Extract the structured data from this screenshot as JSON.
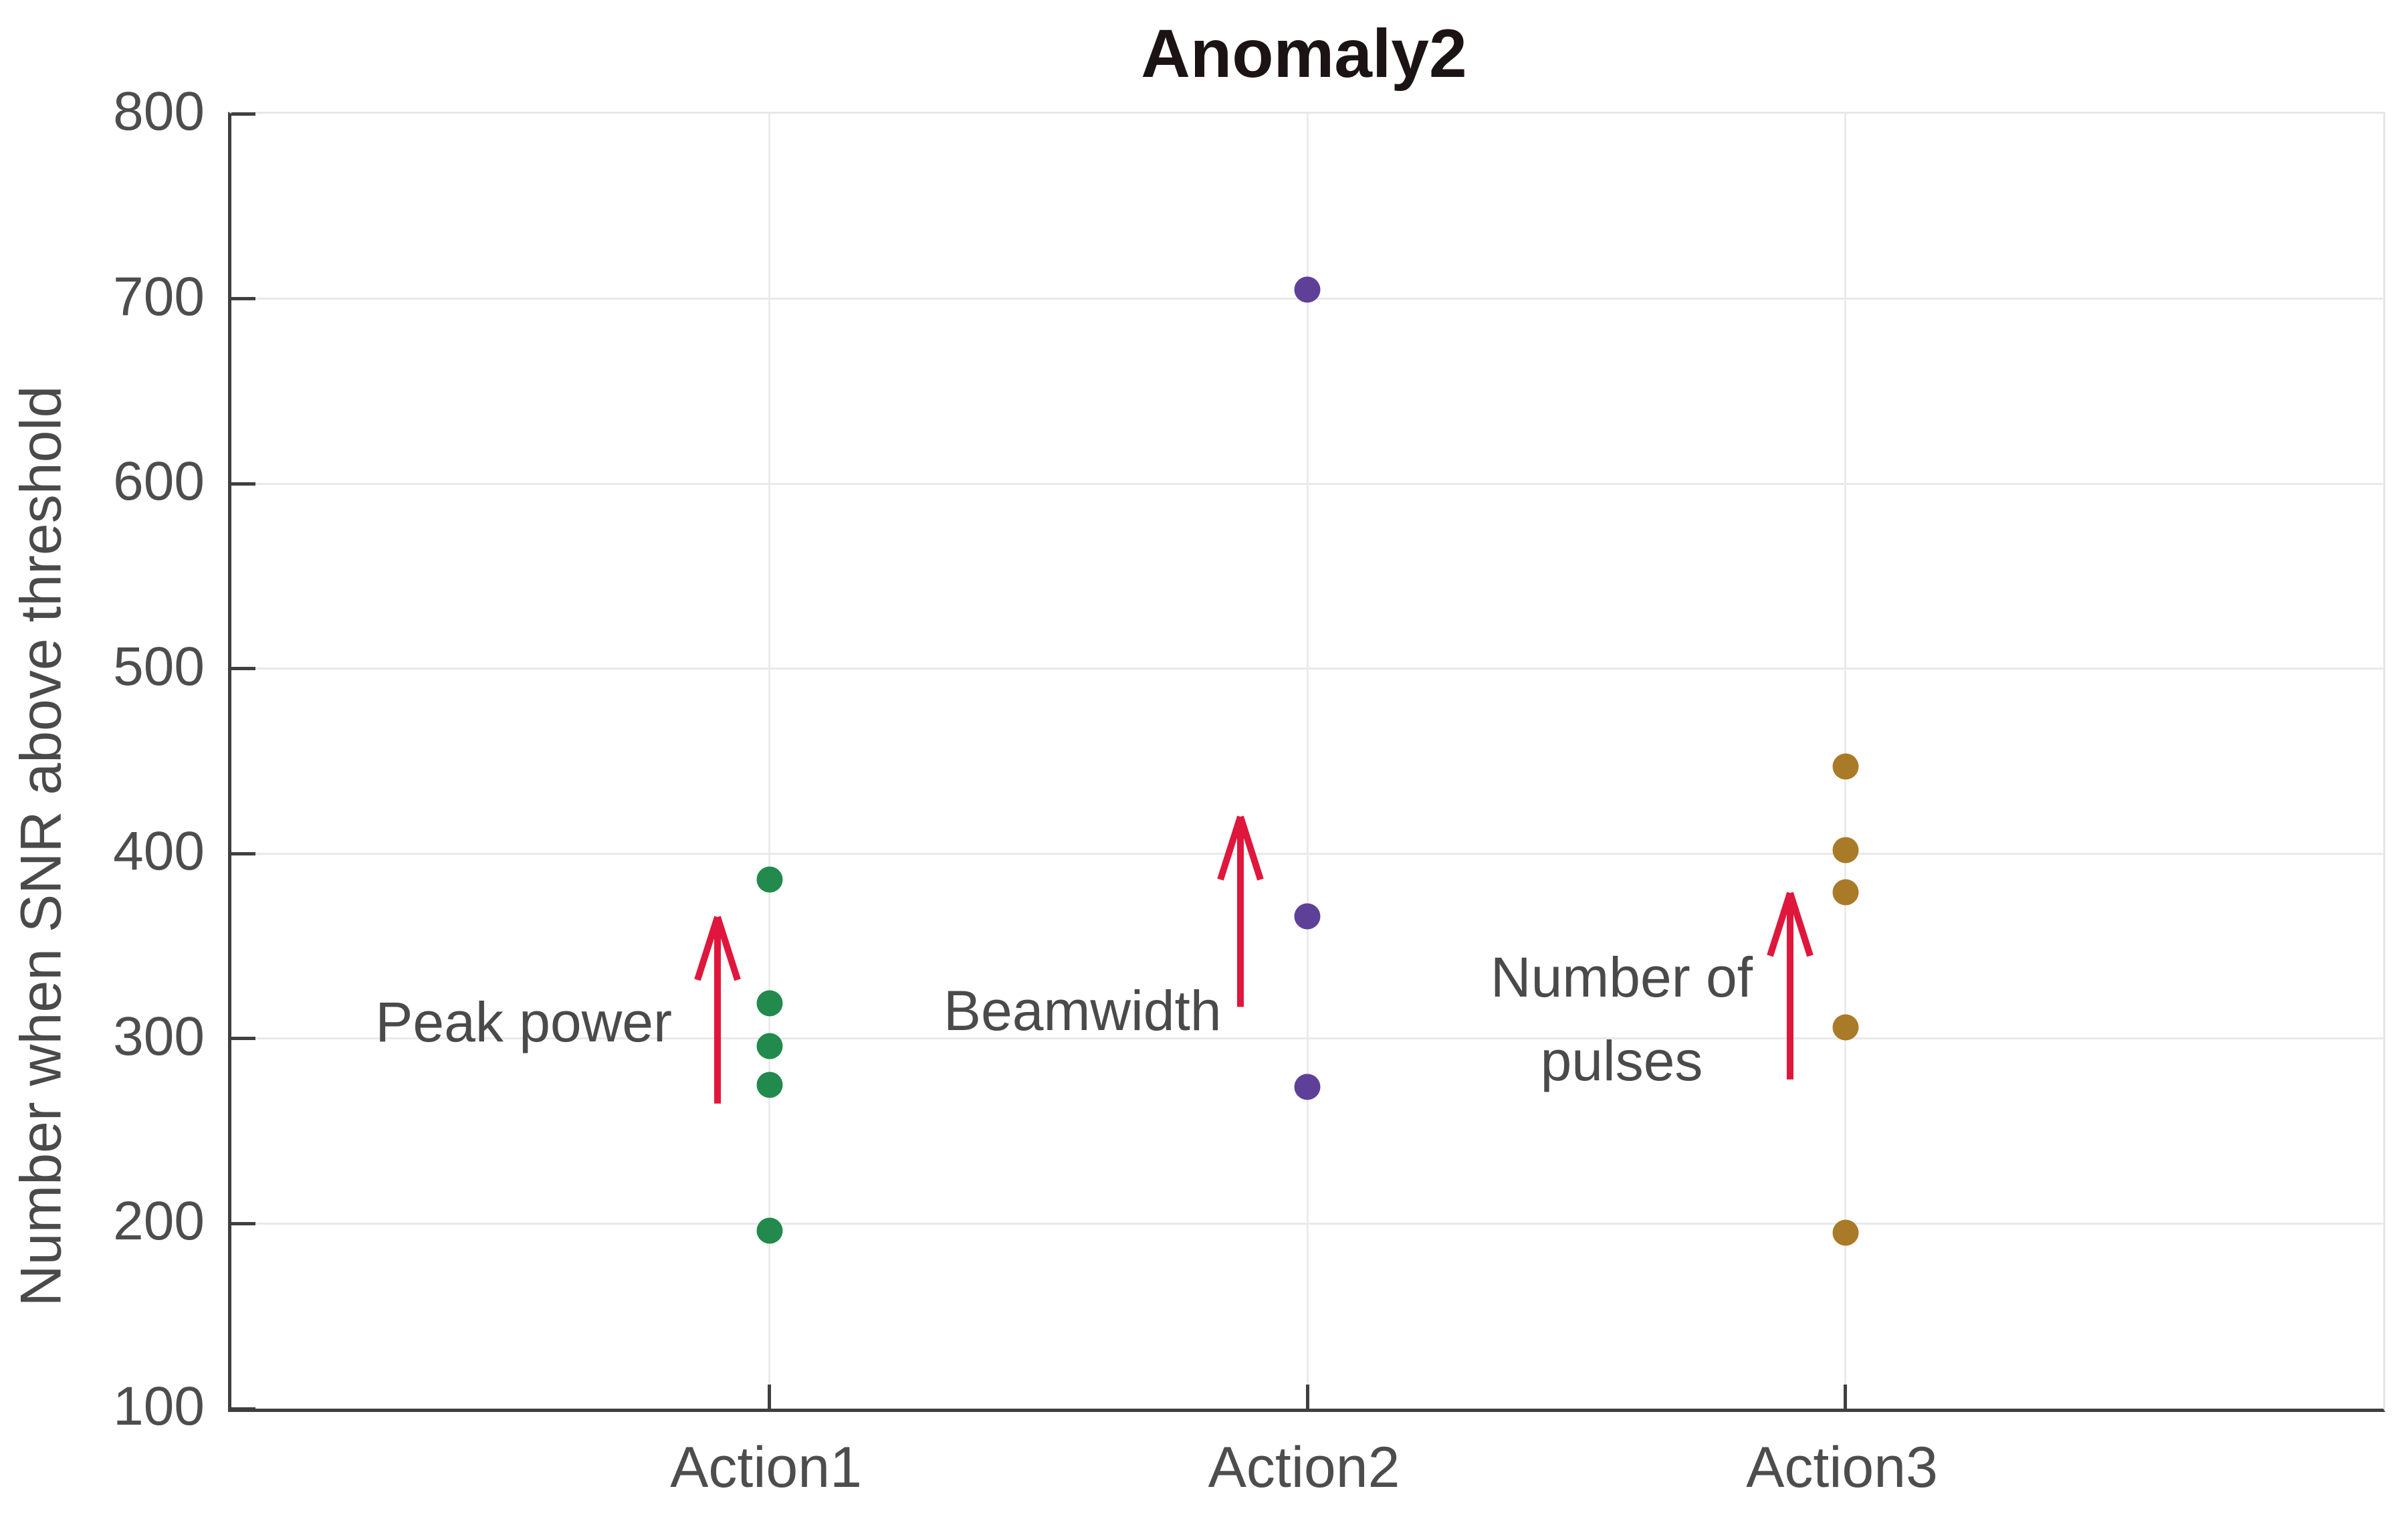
{
  "title": "Anomaly2",
  "chart_data": {
    "type": "scatter",
    "title": "Anomaly2",
    "xlabel": "",
    "ylabel": "Number when SNR above threshold",
    "categories": [
      "Action1",
      "Action2",
      "Action3"
    ],
    "ylim": [
      100,
      800
    ],
    "yticks": [
      100,
      200,
      300,
      400,
      500,
      600,
      700,
      800
    ],
    "grid": true,
    "legend_position": "none",
    "marker_shape": "filled-circle",
    "series": [
      {
        "name": "Action1",
        "marker_color": "#218a4c",
        "values": [
          386,
          319,
          296,
          275,
          196
        ]
      },
      {
        "name": "Action2",
        "marker_color": "#5f4098",
        "values": [
          705,
          366,
          274
        ]
      },
      {
        "name": "Action3",
        "marker_color": "#a97a28",
        "values": [
          447,
          402,
          379,
          306,
          195
        ]
      }
    ],
    "annotations": [
      {
        "category": "Action1",
        "lines": [
          "Peak power"
        ],
        "align": "right",
        "text_x": 659,
        "line_values": [
          300
        ],
        "arrow": {
          "x": 727,
          "v_from": 265,
          "v_to": 368
        }
      },
      {
        "category": "Action2",
        "lines": [
          "Beamwidth"
        ],
        "align": "left",
        "text_x": 1065,
        "line_values": [
          306
        ],
        "arrow": {
          "x": 1509,
          "v_from": 317,
          "v_to": 422
        }
      },
      {
        "category": "Action3",
        "lines": [
          "Number of",
          "pulses"
        ],
        "align": "center",
        "text_x": 2079,
        "line_values": [
          324,
          279
        ],
        "arrow": {
          "x": 2331,
          "v_from": 278,
          "v_to": 381
        }
      }
    ],
    "annotation_arrow_color": "#e0173c",
    "annotation_text_color": "#4a4a4a",
    "axis_color": "#3f3f3f",
    "gridline_color": "#e9e9e9",
    "tick_label_color": "#4d4d4d"
  }
}
